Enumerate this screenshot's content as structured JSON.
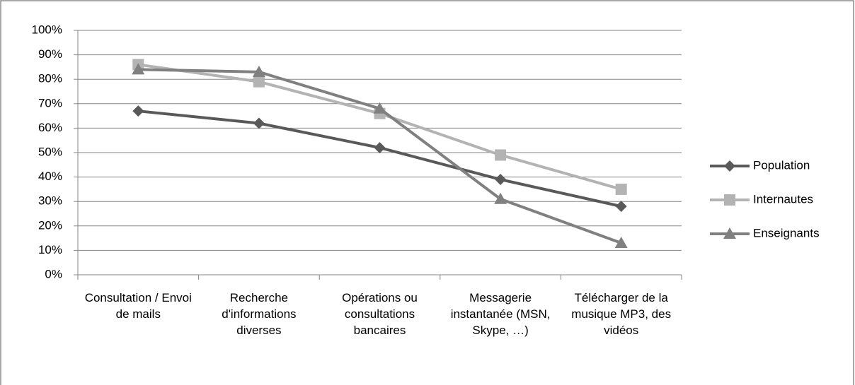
{
  "chart_data": {
    "type": "line",
    "categories": [
      "Consultation / Envoi de mails",
      "Recherche d'informations diverses",
      "Opérations ou consultations bancaires",
      "Messagerie instantanée (MSN, Skype, …)",
      "Télécharger de la musique MP3, des vidéos"
    ],
    "series": [
      {
        "name": "Population",
        "color": "#595959",
        "marker": "diamond",
        "values": [
          67,
          62,
          52,
          39,
          28
        ]
      },
      {
        "name": "Internautes",
        "color": "#b3b3b3",
        "marker": "square",
        "values": [
          86,
          79,
          66,
          49,
          35
        ]
      },
      {
        "name": "Enseignants",
        "color": "#808080",
        "marker": "triangle",
        "values": [
          84,
          83,
          68,
          31,
          13
        ]
      }
    ],
    "ylim": [
      0,
      100
    ],
    "yticks": [
      {
        "value": 0,
        "label": "0%"
      },
      {
        "value": 10,
        "label": "10%"
      },
      {
        "value": 20,
        "label": "20%"
      },
      {
        "value": 30,
        "label": "30%"
      },
      {
        "value": 40,
        "label": "40%"
      },
      {
        "value": 50,
        "label": "50%"
      },
      {
        "value": 60,
        "label": "60%"
      },
      {
        "value": 70,
        "label": "70%"
      },
      {
        "value": 80,
        "label": "80%"
      },
      {
        "value": 90,
        "label": "90%"
      },
      {
        "value": 100,
        "label": "100%"
      }
    ],
    "grid": true,
    "legend": "right"
  }
}
